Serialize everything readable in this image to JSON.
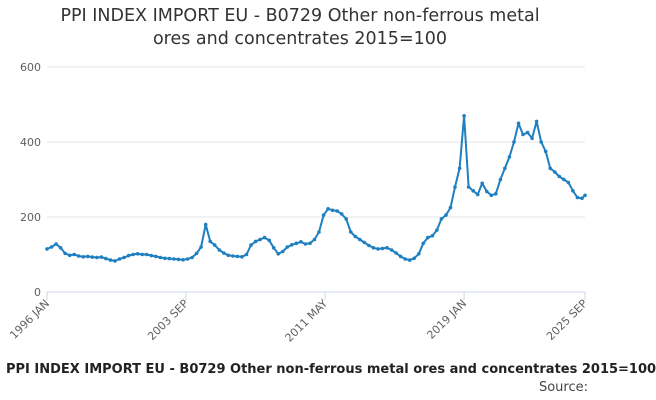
{
  "chart_data": {
    "type": "line",
    "title": "PPI INDEX IMPORT EU - B0729 Other non-ferrous metal ores and concentrates 2015=100",
    "caption": "PPI INDEX IMPORT EU - B0729 Other non-ferrous metal ores and concentrates 2015=100",
    "source": "Source:",
    "xlabel": "",
    "ylabel": "",
    "ylim": [
      0,
      600
    ],
    "yticks": [
      0,
      200,
      400,
      600
    ],
    "xrange": [
      "1996-01",
      "2025-09"
    ],
    "xticks": [
      {
        "date": "1996-01",
        "label": "1996 JAN"
      },
      {
        "date": "2003-09",
        "label": "2003 SEP"
      },
      {
        "date": "2011-05",
        "label": "2011 MAY"
      },
      {
        "date": "2019-01",
        "label": "2019 JAN"
      },
      {
        "date": "2025-09",
        "label": "2025 SEP"
      }
    ],
    "grid": true,
    "legend": "none",
    "color": "#1f7fc0",
    "series": [
      {
        "x": [
          "1996-01",
          "1996-04",
          "1996-07",
          "1996-10",
          "1997-01",
          "1997-04",
          "1997-07",
          "1997-10",
          "1998-01",
          "1998-04",
          "1998-07",
          "1998-10",
          "1999-01",
          "1999-04",
          "1999-07",
          "1999-10",
          "2000-01",
          "2000-04",
          "2000-07",
          "2000-10",
          "2001-01",
          "2001-04",
          "2001-07",
          "2001-10",
          "2002-01",
          "2002-04",
          "2002-07",
          "2002-10",
          "2003-01",
          "2003-04",
          "2003-07",
          "2003-10",
          "2004-01",
          "2004-04",
          "2004-07",
          "2004-10",
          "2005-01",
          "2005-04",
          "2005-07",
          "2005-10",
          "2006-01",
          "2006-04",
          "2006-07",
          "2006-10",
          "2007-01",
          "2007-04",
          "2007-07",
          "2007-10",
          "2008-01",
          "2008-04",
          "2008-07",
          "2008-10",
          "2009-01",
          "2009-04",
          "2009-07",
          "2009-10",
          "2010-01",
          "2010-04",
          "2010-07",
          "2010-10",
          "2011-01",
          "2011-04",
          "2011-07",
          "2011-10",
          "2012-01",
          "2012-04",
          "2012-07",
          "2012-10",
          "2013-01",
          "2013-04",
          "2013-07",
          "2013-10",
          "2014-01",
          "2014-04",
          "2014-07",
          "2014-10",
          "2015-01",
          "2015-04",
          "2015-07",
          "2015-10",
          "2016-01",
          "2016-04",
          "2016-07",
          "2016-10",
          "2017-01",
          "2017-04",
          "2017-07",
          "2017-10",
          "2018-01",
          "2018-04",
          "2018-07",
          "2018-10",
          "2019-01",
          "2019-04",
          "2019-07",
          "2019-10",
          "2020-01",
          "2020-04",
          "2020-07",
          "2020-10",
          "2021-01",
          "2021-04",
          "2021-07",
          "2021-10",
          "2022-01",
          "2022-04",
          "2022-07",
          "2022-10",
          "2023-01",
          "2023-04",
          "2023-07",
          "2023-10",
          "2024-01",
          "2024-04",
          "2024-07",
          "2024-10",
          "2025-01",
          "2025-04",
          "2025-07",
          "2025-09"
        ],
        "values": [
          115,
          120,
          128,
          118,
          103,
          98,
          100,
          96,
          94,
          95,
          93,
          92,
          93,
          89,
          85,
          83,
          88,
          92,
          97,
          100,
          102,
          100,
          100,
          97,
          95,
          92,
          90,
          89,
          88,
          87,
          86,
          88,
          92,
          103,
          120,
          180,
          135,
          125,
          112,
          104,
          98,
          96,
          95,
          94,
          100,
          125,
          135,
          140,
          145,
          138,
          118,
          102,
          108,
          120,
          126,
          130,
          134,
          128,
          130,
          140,
          160,
          205,
          222,
          218,
          216,
          208,
          195,
          160,
          148,
          140,
          132,
          124,
          118,
          115,
          116,
          118,
          112,
          104,
          95,
          88,
          85,
          90,
          102,
          130,
          145,
          150,
          165,
          195,
          205,
          225,
          280,
          330,
          470,
          280,
          270,
          260,
          290,
          268,
          258,
          262,
          300,
          330,
          360,
          400,
          450,
          420,
          425,
          410,
          455,
          400,
          375,
          330,
          320,
          308,
          300,
          292,
          270,
          252,
          250,
          258
        ]
      }
    ]
  }
}
